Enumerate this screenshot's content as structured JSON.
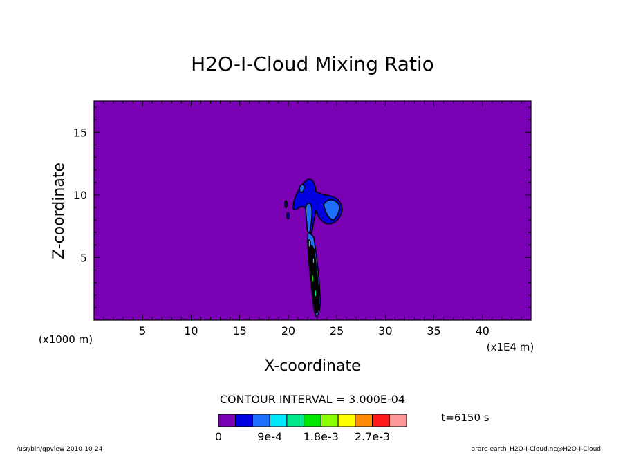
{
  "chart_data": {
    "type": "contour",
    "title": "H2O-I-Cloud Mixing Ratio",
    "xlabel": "X-coordinate",
    "ylabel": "Z-coordinate",
    "x_unit_label": "(x1E4 m)",
    "y_unit_label": "(x1000 m)",
    "xlim": [
      0,
      45
    ],
    "ylim": [
      0,
      17.5
    ],
    "xticks": [
      5,
      10,
      15,
      20,
      25,
      30,
      35,
      40
    ],
    "yticks": [
      5,
      10,
      15
    ],
    "contour_interval_label": "CONTOUR INTERVAL = 3.000E-04",
    "time_label": "t=6150 s",
    "colorbar": {
      "colors": [
        "#7a00b4",
        "#0000e0",
        "#1f6fff",
        "#00e8ff",
        "#00e88c",
        "#00e800",
        "#8cff00",
        "#ffff00",
        "#ff8c00",
        "#ff1a1a",
        "#ff9a9a"
      ],
      "tick_labels": [
        "0",
        "9e-4",
        "1.8e-3",
        "2.7e-3"
      ],
      "tick_values": [
        0,
        0.0009,
        0.0018,
        0.0027
      ],
      "min": 0,
      "max": 0.0033
    },
    "background_value": 0,
    "features": [
      {
        "name": "anvil",
        "level_range": [
          0.0003,
          0.0006
        ],
        "x_range": [
          19.8,
          25.5
        ],
        "z_range": [
          8.2,
          11.4
        ]
      },
      {
        "name": "column",
        "level_range": [
          0.0006,
          0.0015
        ],
        "x_range": [
          21.8,
          23.2
        ],
        "z_range": [
          0.3,
          9.5
        ]
      }
    ]
  },
  "footer": {
    "left": "/usr/bin/gpview   2010-10-24",
    "right": "arare-earth_H2O-I-Cloud.nc@H2O-I-Cloud"
  }
}
